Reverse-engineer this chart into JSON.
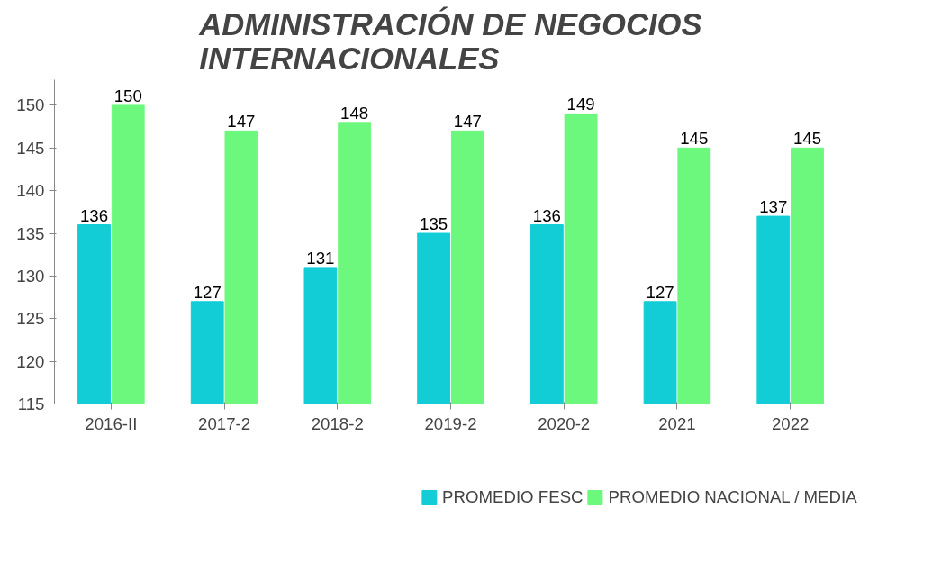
{
  "chart_data": {
    "type": "bar",
    "title": "ADMINISTRACIÓN DE NEGOCIOS\nINTERNACIONALES",
    "categories": [
      "2016-II",
      "2017-2",
      "2018-2",
      "2019-2",
      "2020-2",
      "2021",
      "2022"
    ],
    "series": [
      {
        "name": "PROMEDIO FESC",
        "color": "#12cdd6",
        "values": [
          136,
          127,
          131,
          135,
          136,
          127,
          137
        ]
      },
      {
        "name": "PROMEDIO NACIONAL / MEDIA",
        "color": "#6cf87c",
        "values": [
          150,
          147,
          148,
          147,
          149,
          145,
          145
        ]
      }
    ],
    "ylim": [
      115,
      153
    ],
    "yticks": [
      115,
      120,
      125,
      130,
      135,
      140,
      145,
      150
    ],
    "data_labels": true,
    "grid": false,
    "legend": "bottom"
  }
}
